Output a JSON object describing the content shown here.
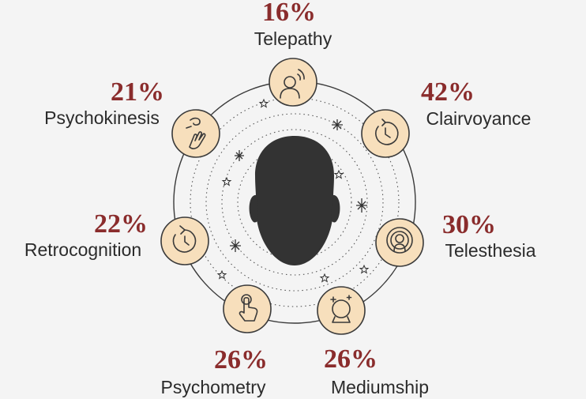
{
  "abilities": [
    {
      "name": "Telepathy",
      "percent": "16%",
      "icon": "telepathy-head-signal-icon"
    },
    {
      "name": "Clairvoyance",
      "percent": "42%",
      "icon": "clock-arrow-icon"
    },
    {
      "name": "Telesthesia",
      "percent": "30%",
      "icon": "person-aura-icon"
    },
    {
      "name": "Mediumship",
      "percent": "26%",
      "icon": "crystal-ball-icon"
    },
    {
      "name": "Psychometry",
      "percent": "26%",
      "icon": "touch-hand-icon"
    },
    {
      "name": "Retrocognition",
      "percent": "22%",
      "icon": "counterclockwise-arrow-icon"
    },
    {
      "name": "Psychokinesis",
      "percent": "21%",
      "icon": "levitating-hand-icon"
    }
  ],
  "colors": {
    "background": "#f4f4f4",
    "percent": "#8a2c2c",
    "label": "#2b2b2b",
    "node_fill": "#f7dfbc",
    "head": "#333333",
    "ring": "#3a3a3a"
  },
  "center_icon": "human-head-silhouette"
}
